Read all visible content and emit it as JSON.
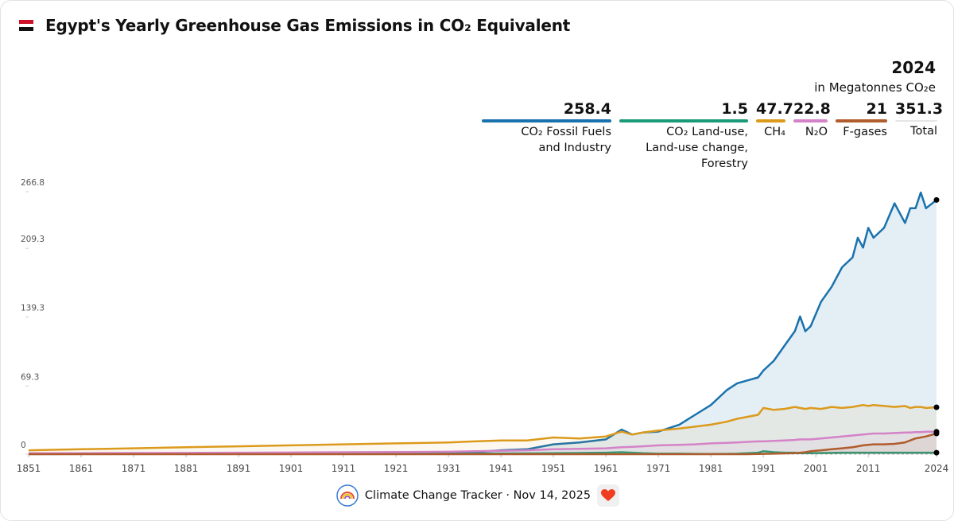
{
  "chart_data": {
    "type": "line",
    "title": "Egypt's Yearly Greenhouse Gas Emissions in CO₂ Equivalent",
    "legend_year": "2024",
    "unit": "in Megatonnes CO₂e",
    "x": [
      1851,
      1861,
      1871,
      1881,
      1891,
      1901,
      1911,
      1921,
      1931,
      1936,
      1941,
      1946,
      1951,
      1956,
      1961,
      1964,
      1966,
      1968,
      1971,
      1975,
      1978,
      1981,
      1984,
      1986,
      1988,
      1990,
      1991,
      1993,
      1995,
      1997,
      1998,
      1999,
      2000,
      2002,
      2004,
      2006,
      2008,
      2009,
      2010,
      2011,
      2012,
      2014,
      2016,
      2018,
      2019,
      2020,
      2021,
      2022,
      2024
    ],
    "series": [
      {
        "name": "CO₂ Fossil Fuels\nand Industry",
        "color": "#1a72ad",
        "values": [
          0.1,
          0.2,
          0.3,
          0.4,
          0.5,
          0.6,
          0.8,
          1,
          1.5,
          2,
          4,
          5,
          10,
          12,
          15,
          25,
          20,
          22,
          23,
          30,
          40,
          50,
          65,
          72,
          75,
          78,
          85,
          95,
          110,
          125,
          140,
          125,
          130,
          155,
          170,
          190,
          200,
          220,
          210,
          230,
          220,
          230,
          255,
          235,
          250,
          250,
          266,
          250,
          258.4
        ]
      },
      {
        "name": "CO₂ Land-use,\nLand-use change,\nForestry",
        "color": "#1a9a78",
        "values": [
          0.5,
          0.5,
          0.5,
          0.5,
          0.5,
          0.5,
          0.5,
          0.5,
          0.5,
          0.6,
          0.7,
          0.8,
          1,
          1.2,
          1.5,
          2,
          1.5,
          1,
          0.5,
          0.5,
          0.3,
          0.2,
          0.3,
          0.5,
          1,
          1.5,
          3,
          2,
          1.5,
          1.5,
          1,
          1,
          1,
          1.2,
          1.3,
          1.5,
          1.5,
          1.5,
          1.5,
          1.5,
          1.5,
          1.5,
          1.5,
          1.5,
          1.5,
          1.5,
          1.5,
          1.5,
          1.5
        ]
      },
      {
        "name": "CH₄",
        "color": "#dc9a1c",
        "values": [
          4,
          5,
          6,
          7,
          8,
          9,
          10,
          11,
          12,
          13,
          14,
          14,
          17,
          16,
          18,
          23,
          20,
          22,
          24,
          26,
          28,
          30,
          33,
          36,
          38,
          40,
          47,
          45,
          46,
          48,
          47,
          46,
          47,
          46,
          48,
          47,
          48,
          49,
          50,
          49,
          50,
          49,
          48,
          49,
          47,
          48,
          48,
          47,
          47.7
        ]
      },
      {
        "name": "N₂O",
        "color": "#d483c8",
        "values": [
          1,
          1,
          1.2,
          1.3,
          1.5,
          1.7,
          2,
          2.2,
          2.5,
          3,
          3.5,
          4,
          5,
          5.5,
          6,
          7,
          7.5,
          8,
          9,
          9.5,
          10,
          11,
          11.5,
          12,
          12.5,
          13,
          13,
          13.5,
          14,
          14.5,
          15,
          15,
          15,
          16,
          17,
          18,
          19,
          19.5,
          20,
          20.5,
          21,
          21,
          21.5,
          22,
          22,
          22.5,
          22.5,
          22.8,
          22.8
        ]
      },
      {
        "name": "F-gases",
        "color": "#b05c2c",
        "values": [
          0,
          0,
          0,
          0,
          0,
          0,
          0,
          0,
          0,
          0,
          0,
          0,
          0,
          0,
          0,
          0,
          0,
          0,
          0,
          0,
          0,
          0,
          0,
          0,
          0,
          0.2,
          0.3,
          0.5,
          0.8,
          1,
          1.5,
          2,
          3,
          4,
          5,
          6,
          7,
          8,
          9,
          9.5,
          10,
          10,
          10.5,
          12,
          14,
          16,
          17,
          18,
          21
        ]
      }
    ],
    "total": {
      "name": "Total",
      "value": 351.3
    },
    "xlim": [
      1851,
      2024
    ],
    "xticks": [
      1851,
      1861,
      1871,
      1881,
      1891,
      1901,
      1911,
      1921,
      1931,
      1941,
      1951,
      1961,
      1971,
      1981,
      1991,
      2001,
      2011,
      2024
    ],
    "ylim": [
      0,
      266.8
    ],
    "yticks": [
      0,
      69.3,
      139.3,
      209.3,
      266.8
    ],
    "grid": false,
    "footer": "Climate Change Tracker · Nov 14, 2025"
  }
}
